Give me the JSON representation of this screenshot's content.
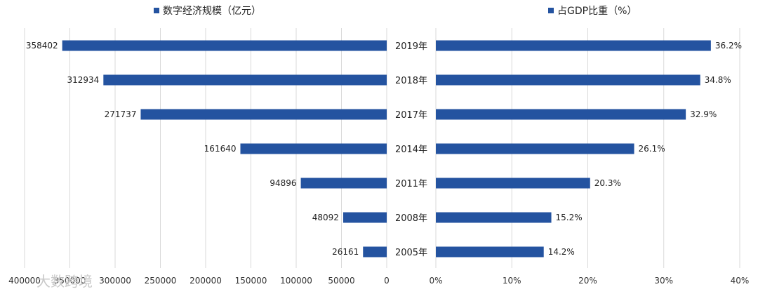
{
  "colors": {
    "bar": "#2453a0",
    "grid": "#d9d9d9",
    "text": "#333333"
  },
  "legend": {
    "left": "数字经济规模（亿元）",
    "right": "占GDP比重（%）"
  },
  "watermark": "大数跨境",
  "chart_data": [
    {
      "type": "bar",
      "orientation": "horizontal",
      "direction": "leftward",
      "title": "数字经济规模（亿元）",
      "categories": [
        "2019年",
        "2018年",
        "2017年",
        "2014年",
        "2011年",
        "2008年",
        "2005年"
      ],
      "values": [
        358402,
        312934,
        271737,
        161640,
        94896,
        48092,
        26161
      ],
      "xlim": [
        0,
        400000
      ],
      "xticks": [
        400000,
        350000,
        300000,
        250000,
        200000,
        150000,
        100000,
        50000,
        0
      ],
      "xtick_labels": [
        "400000",
        "350000",
        "300000",
        "250000",
        "200000",
        "150000",
        "100000",
        "50000",
        "0"
      ],
      "grid": true
    },
    {
      "type": "bar",
      "orientation": "horizontal",
      "direction": "rightward",
      "title": "占GDP比重（%）",
      "categories": [
        "2019年",
        "2018年",
        "2017年",
        "2014年",
        "2011年",
        "2008年",
        "2005年"
      ],
      "values": [
        36.2,
        34.8,
        32.9,
        26.1,
        20.3,
        15.2,
        14.2
      ],
      "value_labels": [
        "36.2%",
        "34.8%",
        "32.9%",
        "26.1%",
        "20.3%",
        "15.2%",
        "14.2%"
      ],
      "xlim": [
        0,
        40
      ],
      "xticks": [
        0,
        10,
        20,
        30,
        40
      ],
      "xtick_labels": [
        "0%",
        "10%",
        "20%",
        "30%",
        "40%"
      ],
      "grid": true
    }
  ]
}
